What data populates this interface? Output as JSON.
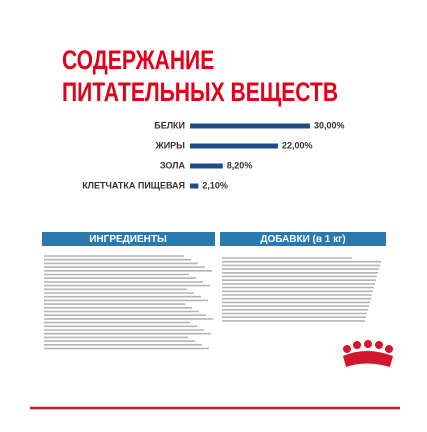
{
  "chart_data": {
    "type": "bar",
    "title": "СОДЕРЖАНИЕ ПИТАТЕЛЬНЫХ ВЕЩЕСТВ",
    "categories": [
      "БЕЛКИ",
      "ЖИРЫ",
      "ЗОЛА",
      "КЛЕТЧАТКА ПИЩЕВАЯ"
    ],
    "values": [
      30,
      22,
      8.2,
      2.1
    ],
    "value_labels": [
      "30,00%",
      "22,00%",
      "8,20%",
      "2,10%"
    ],
    "color": "#1d4f86"
  },
  "sections": {
    "ingredients": "ИНГРЕДИЕНТЫ",
    "additives": "ДОБАВКИ (в 1 кг)"
  }
}
